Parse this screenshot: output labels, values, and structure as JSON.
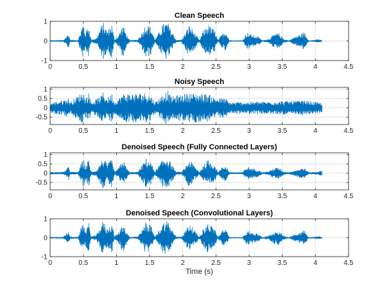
{
  "figure": {
    "xlabel": "Time (s)",
    "colors": {
      "waveform": "#0072BD",
      "grid": "#dedede",
      "axis": "#262626",
      "background": "#ffffff"
    }
  },
  "chart_data": [
    {
      "type": "line",
      "title": "Clean Speech",
      "xlim": [
        0,
        4.5
      ],
      "ylim": [
        -1,
        1
      ],
      "xticks": [
        "0",
        "0.5",
        "1",
        "1.5",
        "2",
        "2.5",
        "3",
        "3.5",
        "4",
        "4.5"
      ],
      "yticks": [
        "-1",
        "0",
        "1"
      ],
      "grid": "on",
      "signal_duration_s": 4.1,
      "envelope": {
        "t": [
          0,
          0.1,
          0.2,
          0.28,
          0.3,
          0.42,
          0.5,
          0.53,
          0.58,
          0.62,
          0.7,
          0.76,
          0.8,
          0.86,
          0.93,
          0.97,
          1.03,
          1.1,
          1.15,
          1.2,
          1.32,
          1.4,
          1.44,
          1.52,
          1.58,
          1.62,
          1.7,
          1.77,
          1.82,
          1.9,
          1.98,
          2.03,
          2.1,
          2.2,
          2.25,
          2.3,
          2.38,
          2.48,
          2.53,
          2.6,
          2.65,
          2.7,
          2.78,
          2.84,
          2.9,
          2.97,
          3.05,
          3.15,
          3.2,
          3.3,
          3.38,
          3.45,
          3.52,
          3.6,
          3.68,
          3.78,
          3.83,
          3.9,
          3.95,
          4.0,
          4.05,
          4.1
        ],
        "amp": [
          0.02,
          0.03,
          0.04,
          0.4,
          0.05,
          0.03,
          0.95,
          0.4,
          0.85,
          0.05,
          0.15,
          0.7,
          0.95,
          0.5,
          0.9,
          0.05,
          0.3,
          0.85,
          0.35,
          0.03,
          0.05,
          0.55,
          0.9,
          0.7,
          0.05,
          0.3,
          0.85,
          0.98,
          0.6,
          0.05,
          0.05,
          0.35,
          0.85,
          0.3,
          0.03,
          0.45,
          0.85,
          0.55,
          0.03,
          0.4,
          0.55,
          0.03,
          0.02,
          0.02,
          0.02,
          0.45,
          0.3,
          0.2,
          0.02,
          0.1,
          0.35,
          0.4,
          0.1,
          0.02,
          0.2,
          0.35,
          0.45,
          0.02,
          0.03,
          0.05,
          0.08,
          0.02
        ]
      }
    },
    {
      "type": "line",
      "title": "Noisy Speech",
      "xlim": [
        0,
        4.5
      ],
      "ylim": [
        -0.9,
        1.1
      ],
      "xticks": [
        "0",
        "0.5",
        "1",
        "1.5",
        "2",
        "2.5",
        "3",
        "3.5",
        "4",
        "4.5"
      ],
      "yticks": [
        "1",
        "0.5",
        "0",
        "-0.5"
      ],
      "grid": "on",
      "signal_duration_s": 4.1,
      "noise_floor": 0.2,
      "envelope": {
        "t": [
          0,
          0.28,
          0.3,
          0.5,
          0.53,
          0.58,
          0.62,
          0.76,
          0.8,
          0.86,
          0.93,
          0.97,
          1.1,
          1.44,
          1.52,
          1.58,
          1.77,
          1.82,
          2.1,
          2.38,
          2.48,
          2.65,
          2.7,
          3.45,
          3.83,
          4.1
        ],
        "amp": [
          0.25,
          0.5,
          0.3,
          0.9,
          0.5,
          0.8,
          0.3,
          0.6,
          0.85,
          0.5,
          0.8,
          0.3,
          0.75,
          0.8,
          0.65,
          0.3,
          0.95,
          0.6,
          0.8,
          0.75,
          0.55,
          0.5,
          0.3,
          0.35,
          0.4,
          0.25
        ]
      }
    },
    {
      "type": "line",
      "title": "Denoised Speech (Fully Connected Layers)",
      "xlim": [
        0,
        4.5
      ],
      "ylim": [
        -0.9,
        1.1
      ],
      "xticks": [
        "0",
        "0.5",
        "1",
        "1.5",
        "2",
        "2.5",
        "3",
        "3.5",
        "4",
        "4.5"
      ],
      "yticks": [
        "1",
        "0.5",
        "0",
        "-0.5"
      ],
      "grid": "on",
      "signal_duration_s": 4.1,
      "envelope": {
        "t": [
          0,
          0.1,
          0.2,
          0.28,
          0.3,
          0.42,
          0.5,
          0.53,
          0.58,
          0.62,
          0.7,
          0.76,
          0.8,
          0.86,
          0.93,
          0.97,
          1.03,
          1.1,
          1.15,
          1.2,
          1.32,
          1.4,
          1.44,
          1.52,
          1.58,
          1.62,
          1.7,
          1.77,
          1.82,
          1.9,
          1.98,
          2.03,
          2.1,
          2.2,
          2.25,
          2.3,
          2.38,
          2.48,
          2.53,
          2.6,
          2.65,
          2.7,
          2.78,
          2.84,
          2.9,
          2.97,
          3.05,
          3.15,
          3.2,
          3.3,
          3.38,
          3.45,
          3.52,
          3.6,
          3.68,
          3.78,
          3.83,
          3.9,
          3.95,
          4.0,
          4.05,
          4.1
        ],
        "amp": [
          0.05,
          0.05,
          0.06,
          0.35,
          0.07,
          0.05,
          0.8,
          0.35,
          0.75,
          0.07,
          0.15,
          0.6,
          0.85,
          0.45,
          0.8,
          0.07,
          0.28,
          0.75,
          0.3,
          0.05,
          0.06,
          0.5,
          0.8,
          0.6,
          0.07,
          0.3,
          0.75,
          0.9,
          0.55,
          0.07,
          0.06,
          0.3,
          0.75,
          0.28,
          0.05,
          0.4,
          0.7,
          0.5,
          0.05,
          0.35,
          0.45,
          0.05,
          0.04,
          0.04,
          0.04,
          0.35,
          0.25,
          0.18,
          0.04,
          0.1,
          0.28,
          0.3,
          0.08,
          0.04,
          0.15,
          0.25,
          0.3,
          0.04,
          0.05,
          0.06,
          0.08,
          0.15
        ]
      }
    },
    {
      "type": "line",
      "title": "Denoised Speech (Convolutional Layers)",
      "xlim": [
        0,
        4.5
      ],
      "ylim": [
        -1,
        1
      ],
      "xticks": [
        "0",
        "0.5",
        "1",
        "1.5",
        "2",
        "2.5",
        "3",
        "3.5",
        "4",
        "4.5"
      ],
      "yticks": [
        "-1",
        "0",
        "1"
      ],
      "grid": "on",
      "signal_duration_s": 4.1,
      "envelope": {
        "t": [
          0,
          0.1,
          0.2,
          0.28,
          0.3,
          0.42,
          0.5,
          0.53,
          0.58,
          0.62,
          0.7,
          0.76,
          0.8,
          0.86,
          0.93,
          0.97,
          1.03,
          1.1,
          1.15,
          1.2,
          1.32,
          1.4,
          1.44,
          1.52,
          1.58,
          1.62,
          1.7,
          1.77,
          1.82,
          1.9,
          1.98,
          2.03,
          2.1,
          2.2,
          2.25,
          2.3,
          2.38,
          2.48,
          2.53,
          2.6,
          2.65,
          2.7,
          2.78,
          2.84,
          2.9,
          2.97,
          3.05,
          3.15,
          3.2,
          3.3,
          3.38,
          3.45,
          3.52,
          3.6,
          3.68,
          3.78,
          3.83,
          3.9,
          3.95,
          4.0,
          4.05,
          4.1
        ],
        "amp": [
          0.03,
          0.03,
          0.04,
          0.35,
          0.05,
          0.03,
          0.9,
          0.35,
          0.8,
          0.05,
          0.15,
          0.65,
          0.9,
          0.45,
          0.85,
          0.05,
          0.3,
          0.8,
          0.32,
          0.03,
          0.05,
          0.5,
          0.85,
          0.65,
          0.05,
          0.28,
          0.8,
          0.95,
          0.55,
          0.05,
          0.05,
          0.32,
          0.8,
          0.28,
          0.03,
          0.42,
          0.8,
          0.5,
          0.03,
          0.38,
          0.5,
          0.03,
          0.02,
          0.02,
          0.02,
          0.4,
          0.28,
          0.18,
          0.02,
          0.1,
          0.32,
          0.38,
          0.1,
          0.02,
          0.18,
          0.3,
          0.4,
          0.02,
          0.03,
          0.05,
          0.08,
          0.03
        ]
      }
    }
  ]
}
